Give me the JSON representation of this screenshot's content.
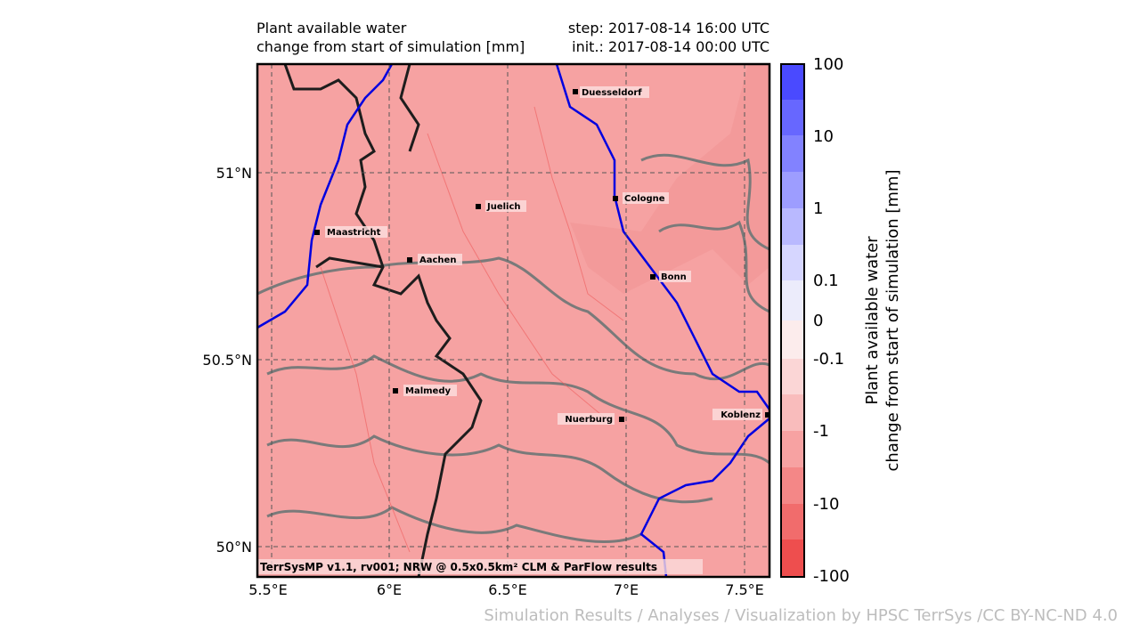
{
  "header": {
    "title_left": [
      "Plant available water",
      "change from start of simulation [mm]"
    ],
    "title_right": [
      "step: 2017-08-14 16:00 UTC",
      "init.: 2017-08-14 00:00 UTC"
    ]
  },
  "map": {
    "lat_labels": [
      "51°N",
      "50.5°N",
      "50°N"
    ],
    "lon_labels": [
      "5.5°E",
      "6°E",
      "6.5°E",
      "7°E",
      "7.5°E"
    ],
    "cities": [
      "Duesseldorf",
      "Cologne",
      "Juelich",
      "Maastricht",
      "Aachen",
      "Bonn",
      "Malmedy",
      "Nuerburg",
      "Koblenz"
    ],
    "credit": "TerrSysMP v1.1, rv001; NRW @ 0.5x0.5km² CLM & ParFlow results"
  },
  "colorbar": {
    "label": [
      "Plant available water",
      "change from start of simulation [mm]"
    ],
    "ticks": [
      "100",
      "10",
      "1",
      "0.1",
      "0",
      "-0.1",
      "-1",
      "-10",
      "-100"
    ]
  },
  "footer": "Simulation Results / Analyses / Visualization by HPSC TerrSys /CC BY-NC-ND 4.0"
}
